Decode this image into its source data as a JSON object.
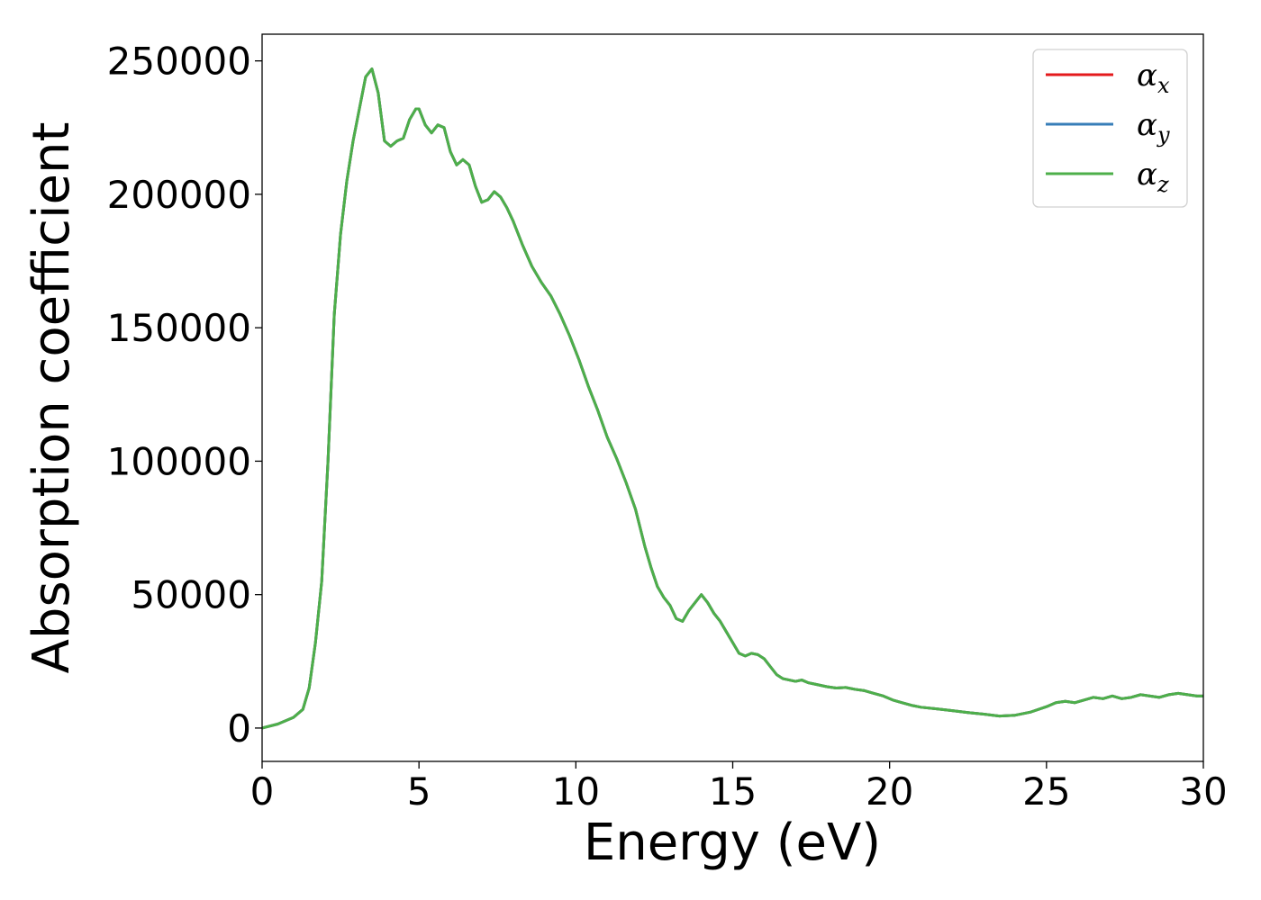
{
  "chart_data": {
    "type": "line",
    "title": "",
    "xlabel": "Energy (eV)",
    "ylabel": "Absorption coefficient",
    "xlim": [
      0,
      30
    ],
    "ylim": [
      -12500,
      260000
    ],
    "xticks": [
      0,
      5,
      10,
      15,
      20,
      25,
      30
    ],
    "xtick_labels": [
      "0",
      "5",
      "10",
      "15",
      "20",
      "25",
      "30"
    ],
    "yticks": [
      0,
      50000,
      100000,
      150000,
      200000,
      250000
    ],
    "ytick_labels": [
      "0",
      "50000",
      "100000",
      "150000",
      "200000",
      "250000"
    ],
    "grid": false,
    "legend_position": "top-right",
    "series": [
      {
        "name": "α",
        "subscript": "x",
        "color": "#e41a1c"
      },
      {
        "name": "α",
        "subscript": "y",
        "color": "#377eb8"
      },
      {
        "name": "α",
        "subscript": "z",
        "color": "#4daf4a"
      }
    ],
    "x": [
      0,
      0.5,
      1.0,
      1.3,
      1.5,
      1.7,
      1.9,
      2.1,
      2.3,
      2.5,
      2.7,
      2.9,
      3.1,
      3.3,
      3.5,
      3.7,
      3.9,
      4.1,
      4.3,
      4.5,
      4.7,
      4.9,
      5.0,
      5.2,
      5.4,
      5.6,
      5.8,
      6.0,
      6.2,
      6.4,
      6.6,
      6.8,
      7.0,
      7.2,
      7.4,
      7.6,
      7.8,
      8.0,
      8.3,
      8.6,
      8.9,
      9.2,
      9.5,
      9.8,
      10.1,
      10.4,
      10.7,
      11.0,
      11.3,
      11.6,
      11.9,
      12.2,
      12.4,
      12.6,
      12.8,
      13.0,
      13.2,
      13.4,
      13.6,
      13.8,
      14.0,
      14.2,
      14.4,
      14.6,
      14.8,
      15.0,
      15.2,
      15.4,
      15.6,
      15.8,
      16.0,
      16.2,
      16.4,
      16.6,
      16.8,
      17.0,
      17.2,
      17.4,
      17.6,
      17.8,
      18.0,
      18.3,
      18.6,
      18.9,
      19.2,
      19.5,
      19.8,
      20.1,
      20.4,
      20.7,
      21.0,
      21.5,
      22.0,
      22.5,
      23.0,
      23.5,
      24.0,
      24.5,
      25.0,
      25.3,
      25.6,
      25.9,
      26.2,
      26.5,
      26.8,
      27.1,
      27.4,
      27.7,
      28.0,
      28.3,
      28.6,
      28.9,
      29.2,
      29.5,
      29.8,
      30.0
    ],
    "values": [
      0,
      1500,
      4000,
      7000,
      15000,
      32000,
      55000,
      100000,
      155000,
      185000,
      205000,
      220000,
      232000,
      244000,
      247000,
      238000,
      220000,
      218000,
      220000,
      221000,
      228000,
      232000,
      232000,
      226000,
      223000,
      226000,
      225000,
      216000,
      211000,
      213000,
      211000,
      203000,
      197000,
      198000,
      201000,
      199000,
      195000,
      190000,
      181000,
      173000,
      167000,
      162000,
      155000,
      147000,
      138000,
      128000,
      119000,
      109000,
      101000,
      92000,
      82000,
      68000,
      60000,
      53000,
      49000,
      46000,
      41000,
      40000,
      44000,
      47000,
      50000,
      47000,
      43000,
      40000,
      36000,
      32000,
      28000,
      27000,
      28000,
      27500,
      26000,
      23000,
      20000,
      18500,
      18000,
      17500,
      18000,
      17000,
      16500,
      16000,
      15500,
      15000,
      15200,
      14500,
      14000,
      13000,
      12000,
      10500,
      9500,
      8500,
      7800,
      7200,
      6500,
      5800,
      5200,
      4500,
      4800,
      6000,
      8000,
      9500,
      10000,
      9500,
      10500,
      11500,
      11000,
      12000,
      11000,
      11500,
      12500,
      12000,
      11500,
      12500,
      13000,
      12500,
      12000,
      12000
    ]
  }
}
